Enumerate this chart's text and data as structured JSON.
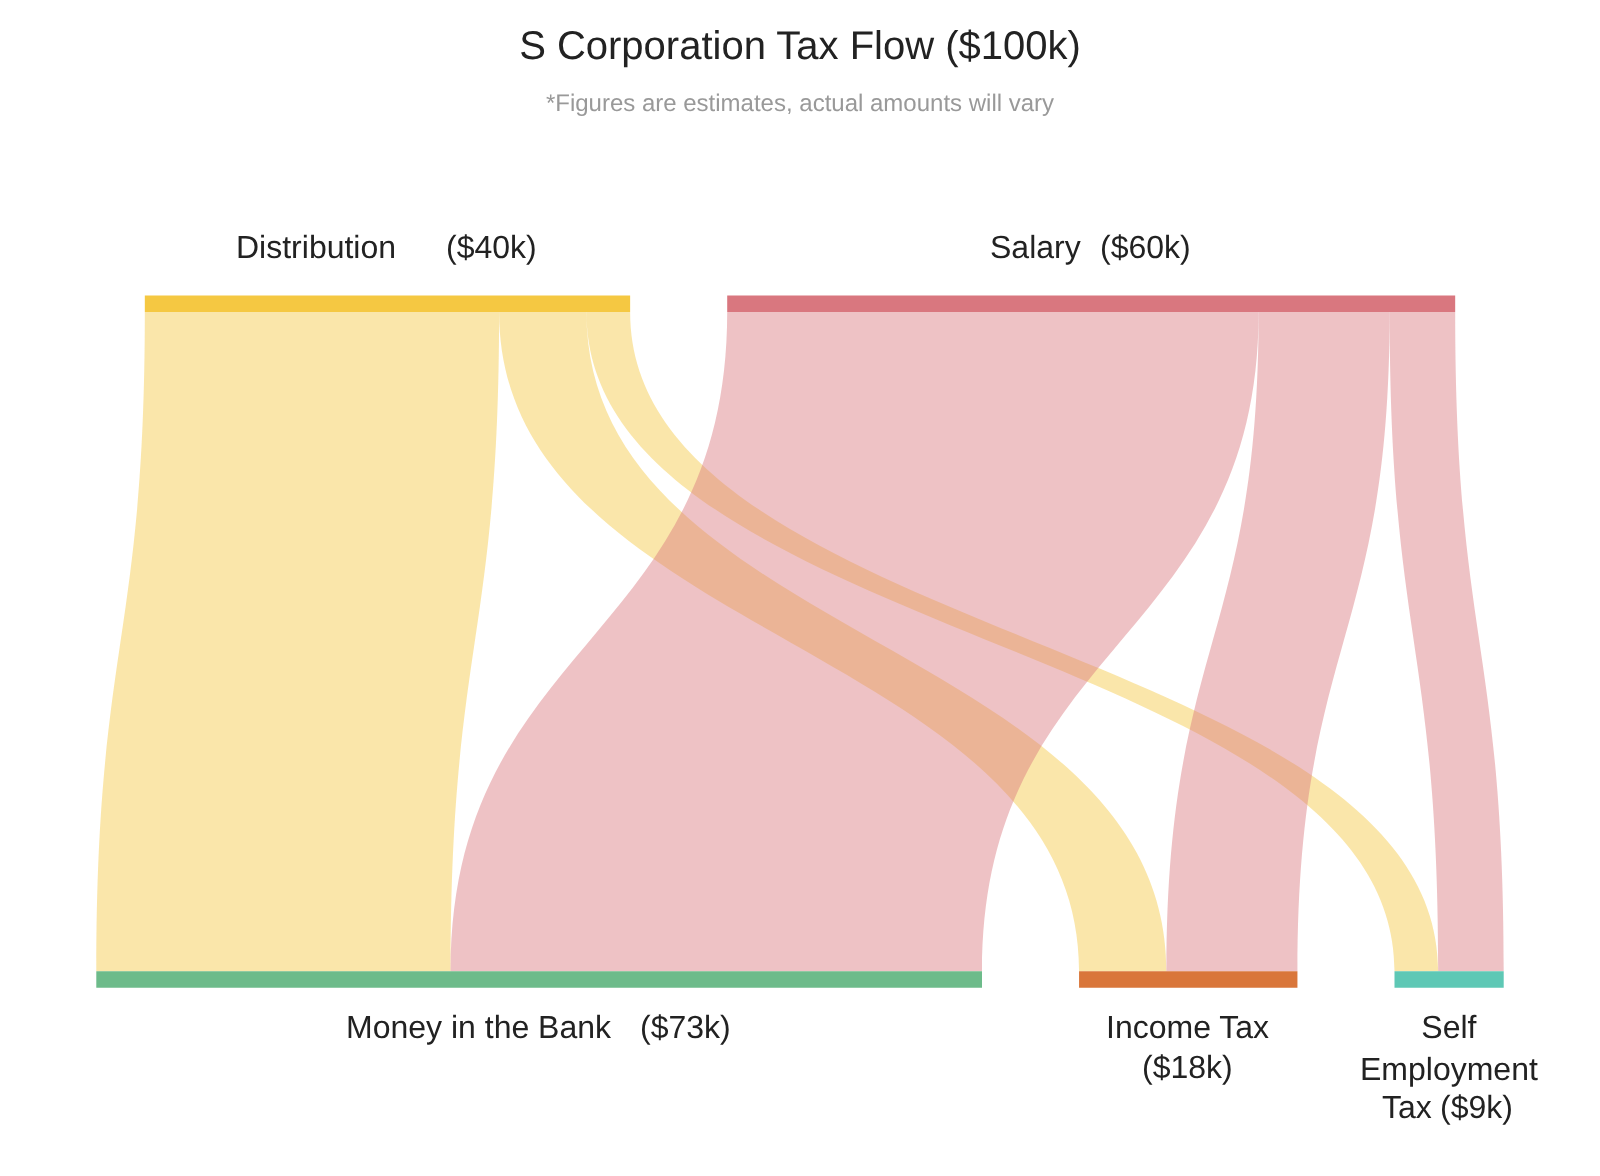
{
  "chart_data": {
    "type": "other",
    "title": "S Corporation Tax Flow ($100k)",
    "subtitle": "*Figures are estimates, actual amounts will vary",
    "categories": [
      "Distribution",
      "Salary",
      "Money in the Bank",
      "Income Tax",
      "Self Employment Tax"
    ],
    "values": [
      40,
      60,
      73,
      18,
      9
    ],
    "value_labels": [
      "($40k)",
      "($60k)",
      "($73k)",
      "($18k)",
      "($9k)"
    ],
    "colors": [
      "#f5c842",
      "#d9777f",
      "#6dbb8a",
      "#d9763a",
      "#5ec8b5"
    ]
  }
}
